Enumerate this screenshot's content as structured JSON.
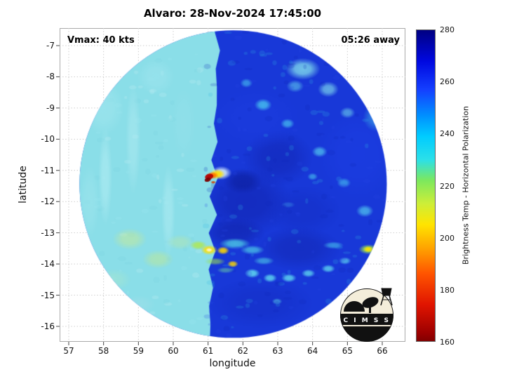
{
  "logo": {
    "text": "C I M S S"
  },
  "chart_data": {
    "type": "heatmap",
    "title": "Alvaro: 28-Nov-2024 17:45:00",
    "annotations": {
      "vmax": "Vmax: 40 kts",
      "time_away": "05:26 away"
    },
    "xlabel": "longitude",
    "ylabel": "latitude",
    "x_ticks": [
      57,
      58,
      59,
      60,
      61,
      62,
      63,
      64,
      65,
      66
    ],
    "y_ticks": [
      -7,
      -8,
      -9,
      -10,
      -11,
      -12,
      -13,
      -14,
      -15,
      -16
    ],
    "xlim": [
      56.7,
      66.7
    ],
    "ylim": [
      -16.5,
      -6.45
    ],
    "grid": true,
    "colorbar": {
      "label": "Brightness Temp - Horizontal Polarization",
      "ticks": [
        160,
        180,
        200,
        220,
        240,
        260,
        280
      ],
      "min": 160,
      "max": 280,
      "stops": [
        {
          "v": 280,
          "c": "#000082"
        },
        {
          "v": 268,
          "c": "#0008e0"
        },
        {
          "v": 257,
          "c": "#1440ff"
        },
        {
          "v": 247,
          "c": "#0090ff"
        },
        {
          "v": 239,
          "c": "#00ccff"
        },
        {
          "v": 230,
          "c": "#2ce0e8"
        },
        {
          "v": 222,
          "c": "#7ce85e"
        },
        {
          "v": 213,
          "c": "#cdee38"
        },
        {
          "v": 205,
          "c": "#ffe400"
        },
        {
          "v": 196,
          "c": "#ffa400"
        },
        {
          "v": 186,
          "c": "#ff5400"
        },
        {
          "v": 174,
          "c": "#e01400"
        },
        {
          "v": 163,
          "c": "#9c0000"
        },
        {
          "v": 160,
          "c": "#800000"
        }
      ]
    },
    "disk": {
      "center_lon": 61.72,
      "center_lat": -11.44,
      "radius_lon_deg": 4.41,
      "base_color": "#1838d8",
      "left_swath_color": "#8adee8",
      "swath_edge_lon": 61.05
    },
    "features_right": [
      [
        62.1,
        -12.0,
        1.3,
        1.1,
        "#1226b4",
        0.65
      ],
      [
        63.0,
        -10.6,
        1.0,
        0.9,
        "#1226b4",
        0.55
      ],
      [
        61.75,
        -13.0,
        0.9,
        0.5,
        "#1124ac",
        0.6
      ],
      [
        63.7,
        -12.3,
        1.1,
        0.8,
        "#142ec4",
        0.5
      ],
      [
        62.35,
        -9.3,
        1.4,
        1.0,
        "#1c3ce0",
        0.55
      ],
      [
        65.3,
        -10.5,
        1.2,
        1.5,
        "#1e40e8",
        0.45
      ],
      [
        62.0,
        -11.35,
        0.55,
        0.4,
        "#0c1e9c",
        0.6
      ],
      [
        62.5,
        -15.25,
        1.5,
        0.8,
        "#142ec4",
        0.5
      ],
      [
        63.6,
        -13.5,
        1.2,
        0.7,
        "#1124ac",
        0.45
      ],
      [
        62.58,
        -8.9,
        0.25,
        0.2,
        "#49c8f0",
        0.8
      ],
      [
        63.28,
        -9.5,
        0.2,
        0.16,
        "#49c8f0",
        0.7
      ],
      [
        64.2,
        -10.4,
        0.22,
        0.18,
        "#55d0f0",
        0.7
      ],
      [
        62.1,
        -8.2,
        0.18,
        0.15,
        "#49c8f0",
        0.6
      ],
      [
        64.9,
        -11.4,
        0.2,
        0.16,
        "#49c8f0",
        0.6
      ],
      [
        65.5,
        -12.3,
        0.25,
        0.2,
        "#55d0f0",
        0.7
      ],
      [
        64.0,
        -11.2,
        0.15,
        0.12,
        "#49c8f0",
        0.6
      ],
      [
        65.8,
        -9.3,
        0.35,
        0.45,
        "#3fb8e8",
        0.5
      ],
      [
        63.72,
        -7.75,
        0.5,
        0.35,
        "#7fd9ec",
        0.85
      ],
      [
        64.45,
        -8.4,
        0.3,
        0.25,
        "#7fd9ec",
        0.7
      ],
      [
        65.0,
        -9.15,
        0.22,
        0.18,
        "#6fd4ec",
        0.6
      ],
      [
        63.5,
        -8.3,
        0.25,
        0.2,
        "#60ccec",
        0.6
      ],
      [
        62.27,
        -14.3,
        0.22,
        0.15,
        "#5fd8f0",
        0.9
      ],
      [
        62.78,
        -14.45,
        0.2,
        0.14,
        "#5fd8f0",
        0.85
      ],
      [
        63.32,
        -14.45,
        0.22,
        0.14,
        "#5fd8f0",
        0.85
      ],
      [
        63.88,
        -14.3,
        0.2,
        0.13,
        "#5fd8f0",
        0.8
      ],
      [
        64.45,
        -14.15,
        0.2,
        0.13,
        "#5fd8f0",
        0.8
      ],
      [
        64.93,
        -13.9,
        0.18,
        0.12,
        "#5fd8f0",
        0.7
      ],
      [
        62.98,
        -15.2,
        0.15,
        0.1,
        "#55c8e8",
        0.6
      ],
      [
        61.77,
        -13.35,
        0.45,
        0.18,
        "#4fd0e8",
        0.8
      ],
      [
        62.27,
        -13.55,
        0.35,
        0.15,
        "#4fd0e8",
        0.7
      ],
      [
        62.6,
        -13.9,
        0.3,
        0.13,
        "#4fd0e8",
        0.6
      ],
      [
        65.6,
        -13.53,
        0.28,
        0.16,
        "#a0e44f",
        0.9
      ],
      [
        65.6,
        -13.53,
        0.14,
        0.1,
        "#ffe400",
        0.95
      ],
      [
        64.6,
        -13.4,
        0.3,
        0.12,
        "#49c8f0",
        0.6
      ],
      [
        63.3,
        -12.1,
        0.2,
        0.1,
        "#3f9ce8",
        0.4
      ]
    ],
    "features_over": [
      [
        58.05,
        -11.2,
        0.2,
        1.6,
        "#b4eef4",
        0.55
      ],
      [
        58.85,
        -10.0,
        0.22,
        1.8,
        "#b0ebf2",
        0.5
      ],
      [
        59.86,
        -12.3,
        0.2,
        1.5,
        "#b4eef4",
        0.5
      ],
      [
        57.6,
        -12.0,
        0.3,
        1.2,
        "#9fe6ee",
        0.5
      ],
      [
        58.0,
        -9.0,
        0.6,
        0.9,
        "#a4e8f0",
        0.5
      ],
      [
        59.5,
        -8.0,
        0.55,
        0.6,
        "#a0e6f0",
        0.5
      ],
      [
        60.3,
        -9.5,
        0.35,
        1.2,
        "#97e2ec",
        0.4
      ],
      [
        58.75,
        -13.2,
        0.5,
        0.35,
        "#cdeb8f",
        0.5
      ],
      [
        59.56,
        -13.85,
        0.45,
        0.3,
        "#c8ea86",
        0.45
      ],
      [
        58.3,
        -14.5,
        0.5,
        0.35,
        "#a5e6d0",
        0.5
      ],
      [
        60.2,
        -13.3,
        0.4,
        0.25,
        "#bfe8a0",
        0.4
      ],
      [
        59.0,
        -15.3,
        0.5,
        0.3,
        "#9fe0e8",
        0.5
      ],
      [
        60.72,
        -13.4,
        0.25,
        0.15,
        "#b0e84f",
        0.85
      ],
      [
        61.03,
        -13.55,
        0.24,
        0.16,
        "#ffe000",
        0.95
      ],
      [
        61.03,
        -13.55,
        0.1,
        0.07,
        "#fff8d0",
        0.95
      ],
      [
        61.43,
        -13.57,
        0.18,
        0.13,
        "#ffd800",
        0.9
      ],
      [
        61.2,
        -13.92,
        0.3,
        0.12,
        "#9ade4f",
        0.6
      ],
      [
        61.71,
        -14.0,
        0.16,
        0.11,
        "#ffd800",
        0.85
      ],
      [
        61.5,
        -14.2,
        0.25,
        0.1,
        "#70d8a0",
        0.5
      ],
      [
        61.38,
        -11.08,
        0.3,
        0.22,
        "#e0f6ff",
        0.85
      ],
      [
        61.27,
        -11.12,
        0.22,
        0.16,
        "#ffe000",
        0.95
      ],
      [
        61.13,
        -11.16,
        0.17,
        0.12,
        "#ff7400",
        1.0
      ],
      [
        61.03,
        -11.2,
        0.13,
        0.1,
        "#b40000",
        1.0,
        -15,
        1
      ],
      [
        60.99,
        -11.3,
        0.1,
        0.07,
        "#7c0000",
        1.0,
        -15,
        1
      ],
      [
        61.15,
        -11.38,
        0.08,
        0.05,
        "#d04000",
        0.9
      ]
    ]
  }
}
